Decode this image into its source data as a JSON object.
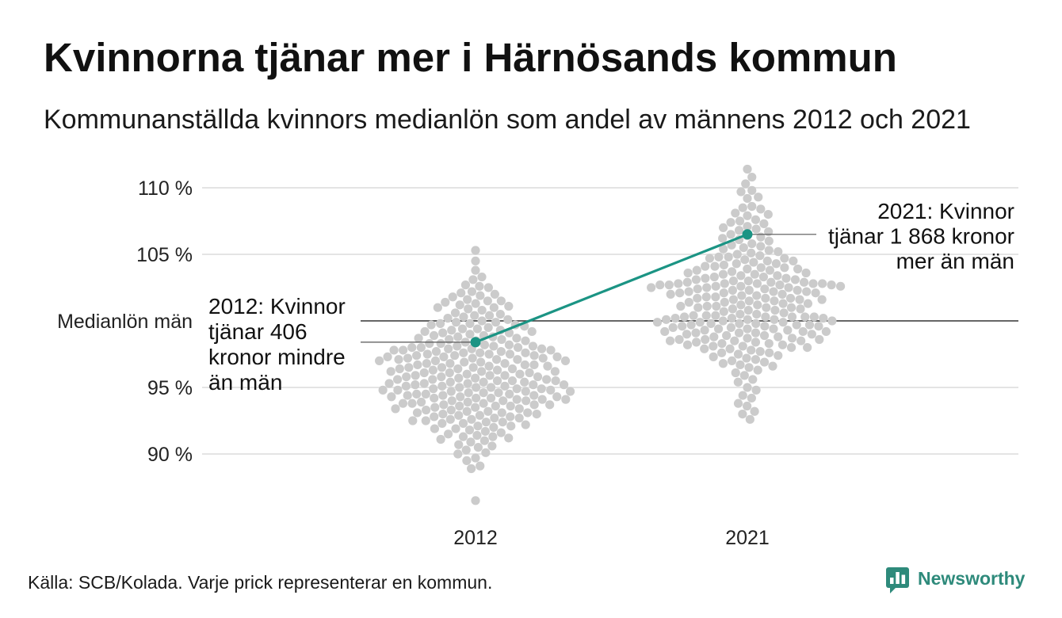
{
  "source": "Källa: SCB/Kolada. Varje prick representerar en kommun.",
  "brand": {
    "name": "Newsworthy",
    "icon": "newsworthy-logo-icon"
  },
  "colors": {
    "dot": "#cbcbcb",
    "highlight": "#1b9484",
    "reference_line": "#333333",
    "grid": "#e4e4e4",
    "annotation_line": "#555555",
    "brand": "#2e8a7b"
  },
  "chart_data": {
    "type": "scatter",
    "title": "Kvinnorna tjänar mer i Härnösands kommun",
    "subtitle": "Kommunanställda kvinnors medianlön som andel av männens 2012 och 2021",
    "categories": [
      "2012",
      "2021"
    ],
    "ylim": [
      85,
      112.5
    ],
    "grid": true,
    "y_ticks": [
      {
        "value": 110,
        "label": "110 %"
      },
      {
        "value": 105,
        "label": "105 %"
      },
      {
        "value": 95,
        "label": "95 %"
      },
      {
        "value": 90,
        "label": "90 %"
      }
    ],
    "reference": {
      "value": 100,
      "label": "Medianlön män"
    },
    "series": [
      {
        "category": "2012",
        "values": [
          105.3,
          104.5,
          103.8,
          103.3,
          103.1,
          102.7,
          102.6,
          102.5,
          102.2,
          102.1,
          102.0,
          101.9,
          101.8,
          101.6,
          101.5,
          101.5,
          101.4,
          101.3,
          101.2,
          101.1,
          101.0,
          101.0,
          100.9,
          100.8,
          100.6,
          100.5,
          100.4,
          100.4,
          100.3,
          100.2,
          100.1,
          100.0,
          99.9,
          99.9,
          99.8,
          99.8,
          99.7,
          99.7,
          99.6,
          99.5,
          99.4,
          99.4,
          99.3,
          99.3,
          99.2,
          99.2,
          99.1,
          99.1,
          99.0,
          98.9,
          98.9,
          98.8,
          98.8,
          98.7,
          98.7,
          98.6,
          98.6,
          98.5,
          98.5,
          98.4,
          98.3,
          98.3,
          98.2,
          98.2,
          98.1,
          98.1,
          98.1,
          98.0,
          98.0,
          98.0,
          97.9,
          97.9,
          97.9,
          97.8,
          97.8,
          97.8,
          97.7,
          97.7,
          97.6,
          97.6,
          97.6,
          97.5,
          97.5,
          97.5,
          97.4,
          97.4,
          97.4,
          97.3,
          97.3,
          97.3,
          97.2,
          97.2,
          97.2,
          97.1,
          97.1,
          97.1,
          97.0,
          97.0,
          97.0,
          96.9,
          96.9,
          96.8,
          96.8,
          96.8,
          96.7,
          96.7,
          96.7,
          96.6,
          96.6,
          96.5,
          96.5,
          96.5,
          96.4,
          96.4,
          96.4,
          96.3,
          96.3,
          96.2,
          96.2,
          96.2,
          96.1,
          96.1,
          96.1,
          96.0,
          96.0,
          95.9,
          95.9,
          95.9,
          95.8,
          95.8,
          95.8,
          95.7,
          95.7,
          95.6,
          95.6,
          95.6,
          95.5,
          95.5,
          95.5,
          95.4,
          95.4,
          95.4,
          95.3,
          95.3,
          95.3,
          95.2,
          95.2,
          95.2,
          95.1,
          95.1,
          95.1,
          95.0,
          95.0,
          95.0,
          94.9,
          94.9,
          94.9,
          94.8,
          94.8,
          94.8,
          94.7,
          94.7,
          94.7,
          94.6,
          94.6,
          94.6,
          94.5,
          94.5,
          94.5,
          94.4,
          94.4,
          94.4,
          94.3,
          94.3,
          94.3,
          94.2,
          94.2,
          94.2,
          94.1,
          94.1,
          94.1,
          94.0,
          94.0,
          94.0,
          93.9,
          93.9,
          93.8,
          93.8,
          93.8,
          93.7,
          93.7,
          93.7,
          93.6,
          93.6,
          93.6,
          93.5,
          93.5,
          93.4,
          93.4,
          93.3,
          93.3,
          93.2,
          93.2,
          93.1,
          93.1,
          93.1,
          93.0,
          93.0,
          92.9,
          92.9,
          92.8,
          92.8,
          92.7,
          92.7,
          92.6,
          92.6,
          92.5,
          92.5,
          92.4,
          92.4,
          92.3,
          92.3,
          92.2,
          92.1,
          92.1,
          92.0,
          91.9,
          91.9,
          91.8,
          91.7,
          91.6,
          91.5,
          91.4,
          91.3,
          91.3,
          91.2,
          91.1,
          91.0,
          90.9,
          90.7,
          90.6,
          90.5,
          90.3,
          90.1,
          90.0,
          89.7,
          89.5,
          89.1,
          88.9,
          86.5
        ]
      },
      {
        "category": "2021",
        "values": [
          111.4,
          110.8,
          110.3,
          109.8,
          109.7,
          109.3,
          109.2,
          108.6,
          108.5,
          108.4,
          108.1,
          108.0,
          107.9,
          107.6,
          107.5,
          107.4,
          107.3,
          107.1,
          107.0,
          106.9,
          106.8,
          106.7,
          106.5,
          106.4,
          106.3,
          106.2,
          106.1,
          106.0,
          105.8,
          105.7,
          105.6,
          105.5,
          105.4,
          105.3,
          105.2,
          105.1,
          105.0,
          104.9,
          104.8,
          104.8,
          104.7,
          104.7,
          104.6,
          104.5,
          104.5,
          104.4,
          104.3,
          104.3,
          104.2,
          104.1,
          104.1,
          104.0,
          104.0,
          103.9,
          103.9,
          103.8,
          103.8,
          103.7,
          103.6,
          103.6,
          103.5,
          103.5,
          103.4,
          103.4,
          103.3,
          103.3,
          103.2,
          103.2,
          103.1,
          103.1,
          103.0,
          103.0,
          102.9,
          102.9,
          102.9,
          102.8,
          102.8,
          102.8,
          102.8,
          102.8,
          102.7,
          102.7,
          102.7,
          102.7,
          102.6,
          102.6,
          102.6,
          102.5,
          102.5,
          102.5,
          102.4,
          102.4,
          102.3,
          102.3,
          102.3,
          102.2,
          102.2,
          102.2,
          102.1,
          102.1,
          102.1,
          102.0,
          102.0,
          101.9,
          101.9,
          101.8,
          101.8,
          101.7,
          101.7,
          101.7,
          101.6,
          101.6,
          101.6,
          101.5,
          101.5,
          101.4,
          101.4,
          101.3,
          101.3,
          101.2,
          101.2,
          101.1,
          101.1,
          101.1,
          101.0,
          101.0,
          101.0,
          100.9,
          100.9,
          100.8,
          100.8,
          100.7,
          100.6,
          100.5,
          100.5,
          100.4,
          100.4,
          100.4,
          100.3,
          100.3,
          100.3,
          100.3,
          100.3,
          100.2,
          100.2,
          100.2,
          100.1,
          100.1,
          100.1,
          100.0,
          100.0,
          99.9,
          99.9,
          99.9,
          99.8,
          99.8,
          99.8,
          99.7,
          99.7,
          99.7,
          99.6,
          99.6,
          99.6,
          99.5,
          99.5,
          99.4,
          99.4,
          99.4,
          99.3,
          99.3,
          99.2,
          99.2,
          99.2,
          99.1,
          99.1,
          99.1,
          99.0,
          99.0,
          98.9,
          98.9,
          98.8,
          98.8,
          98.7,
          98.7,
          98.6,
          98.6,
          98.6,
          98.5,
          98.5,
          98.5,
          98.4,
          98.4,
          98.3,
          98.3,
          98.2,
          98.2,
          98.1,
          98.1,
          98.0,
          98.0,
          97.9,
          97.9,
          97.8,
          97.7,
          97.6,
          97.6,
          97.5,
          97.4,
          97.3,
          97.2,
          97.1,
          97.0,
          96.9,
          96.8,
          96.7,
          96.6,
          96.5,
          96.3,
          96.1,
          95.9,
          95.6,
          95.4,
          95.0,
          94.8,
          94.4,
          94.2,
          93.8,
          93.6,
          93.2,
          93.0,
          92.6
        ]
      }
    ],
    "highlight": [
      {
        "category": "2012",
        "value": 98.4
      },
      {
        "category": "2021",
        "value": 106.5
      }
    ],
    "annotations": [
      {
        "category": "2012",
        "lines": [
          "2012: Kvinnor",
          "tjänar 406",
          "kronor mindre",
          "än män"
        ]
      },
      {
        "category": "2021",
        "lines": [
          "2021: Kvinnor",
          "tjänar 1 868 kronor",
          "mer än män"
        ]
      }
    ]
  }
}
